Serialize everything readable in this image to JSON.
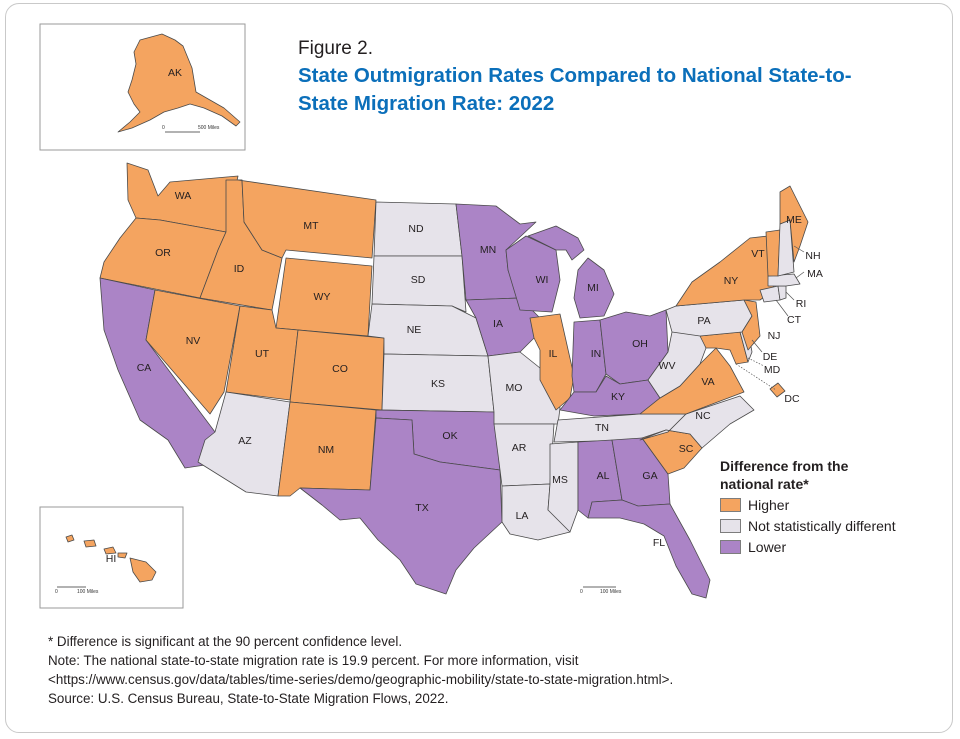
{
  "figure_label": "Figure 2.",
  "title": "State Outmigration Rates Compared to National State-to-State Migration Rate: 2022",
  "legend": {
    "title": "Difference from the national rate*",
    "items": [
      {
        "category": "higher",
        "label": "Higher",
        "color": "#f4a460"
      },
      {
        "category": "nsd",
        "label": "Not statistically different",
        "color": "#e6e3ea"
      },
      {
        "category": "lower",
        "label": "Lower",
        "color": "#ab84c6"
      }
    ]
  },
  "insets": {
    "alaska_scale": [
      "0",
      "500 Miles"
    ],
    "hawaii_scale": [
      "0",
      "100 Miles"
    ],
    "mainland_scale": [
      "0",
      "100 Miles"
    ]
  },
  "states": [
    {
      "abbr": "AK",
      "category": "higher"
    },
    {
      "abbr": "HI",
      "category": "higher"
    },
    {
      "abbr": "WA",
      "category": "higher"
    },
    {
      "abbr": "OR",
      "category": "higher"
    },
    {
      "abbr": "ID",
      "category": "higher"
    },
    {
      "abbr": "MT",
      "category": "higher"
    },
    {
      "abbr": "WY",
      "category": "higher"
    },
    {
      "abbr": "NV",
      "category": "higher"
    },
    {
      "abbr": "UT",
      "category": "higher"
    },
    {
      "abbr": "CO",
      "category": "higher"
    },
    {
      "abbr": "NM",
      "category": "higher"
    },
    {
      "abbr": "IL",
      "category": "higher"
    },
    {
      "abbr": "VA",
      "category": "higher"
    },
    {
      "abbr": "SC",
      "category": "higher"
    },
    {
      "abbr": "NY",
      "category": "higher"
    },
    {
      "abbr": "VT",
      "category": "higher"
    },
    {
      "abbr": "ME",
      "category": "higher"
    },
    {
      "abbr": "NJ",
      "category": "higher"
    },
    {
      "abbr": "MD",
      "category": "higher"
    },
    {
      "abbr": "DC",
      "category": "higher"
    },
    {
      "abbr": "CA",
      "category": "lower"
    },
    {
      "abbr": "MN",
      "category": "lower"
    },
    {
      "abbr": "IA",
      "category": "lower"
    },
    {
      "abbr": "WI",
      "category": "lower"
    },
    {
      "abbr": "MI",
      "category": "lower"
    },
    {
      "abbr": "IN",
      "category": "lower"
    },
    {
      "abbr": "OH",
      "category": "lower"
    },
    {
      "abbr": "KY",
      "category": "lower"
    },
    {
      "abbr": "OK",
      "category": "lower"
    },
    {
      "abbr": "TX",
      "category": "lower"
    },
    {
      "abbr": "AL",
      "category": "lower"
    },
    {
      "abbr": "GA",
      "category": "lower"
    },
    {
      "abbr": "FL",
      "category": "lower"
    },
    {
      "abbr": "ND",
      "category": "nsd"
    },
    {
      "abbr": "SD",
      "category": "nsd"
    },
    {
      "abbr": "NE",
      "category": "nsd"
    },
    {
      "abbr": "KS",
      "category": "nsd"
    },
    {
      "abbr": "MO",
      "category": "nsd"
    },
    {
      "abbr": "AR",
      "category": "nsd"
    },
    {
      "abbr": "LA",
      "category": "nsd"
    },
    {
      "abbr": "MS",
      "category": "nsd"
    },
    {
      "abbr": "TN",
      "category": "nsd"
    },
    {
      "abbr": "NC",
      "category": "nsd"
    },
    {
      "abbr": "WV",
      "category": "nsd"
    },
    {
      "abbr": "PA",
      "category": "nsd"
    },
    {
      "abbr": "AZ",
      "category": "nsd"
    },
    {
      "abbr": "NH",
      "category": "nsd"
    },
    {
      "abbr": "MA",
      "category": "nsd"
    },
    {
      "abbr": "RI",
      "category": "nsd"
    },
    {
      "abbr": "CT",
      "category": "nsd"
    },
    {
      "abbr": "DE",
      "category": "nsd"
    }
  ],
  "notes": {
    "footnote": "* Difference is significant at the 90 percent confidence level.",
    "note_line1": "Note: The national state-to-state migration rate is 19.9 percent. For more information, visit",
    "note_line2": "<https://www.census.gov/data/tables/time-series/demo/geographic-mobility/state-to-state-migration.html>.",
    "source": "Source: U.S. Census Bureau, State-to-State Migration Flows, 2022."
  }
}
